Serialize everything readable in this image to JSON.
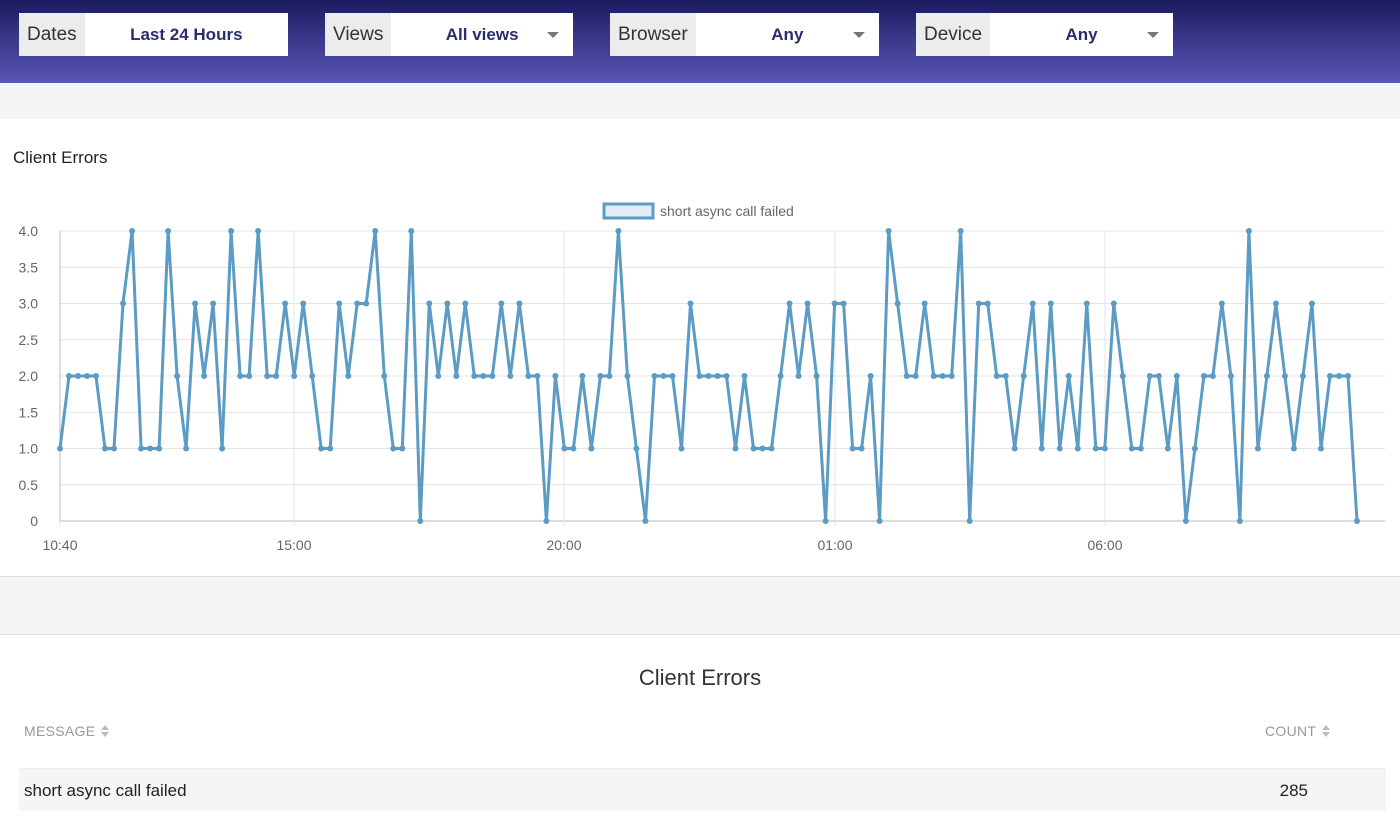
{
  "filters": [
    {
      "label": "Dates",
      "value": "Last 24 Hours",
      "dropdown": false
    },
    {
      "label": "Views",
      "value": "All views",
      "dropdown": true
    },
    {
      "label": "Browser",
      "value": "Any",
      "dropdown": true
    },
    {
      "label": "Device",
      "value": "Any",
      "dropdown": true
    }
  ],
  "chart": {
    "title": "Client Errors"
  },
  "chart_data": {
    "type": "line",
    "title": "Client Errors",
    "xlabel": "",
    "ylabel": "",
    "ylim": [
      0,
      4
    ],
    "yticks": [
      "0",
      "0.5",
      "1.0",
      "1.5",
      "2.0",
      "2.5",
      "3.0",
      "3.5",
      "4.0"
    ],
    "xticks": [
      "10:40",
      "15:00",
      "20:00",
      "01:00",
      "06:00"
    ],
    "grid": true,
    "legend": "top-center",
    "series": [
      {
        "name": "short async call failed",
        "color": "#5b9bc4",
        "values": [
          1,
          2,
          2,
          2,
          2,
          1,
          1,
          3,
          4,
          1,
          1,
          1,
          4,
          2,
          1,
          3,
          2,
          3,
          1,
          4,
          2,
          2,
          4,
          2,
          2,
          3,
          2,
          3,
          2,
          1,
          1,
          3,
          2,
          3,
          3,
          4,
          2,
          1,
          1,
          4,
          0,
          3,
          2,
          3,
          2,
          3,
          2,
          2,
          2,
          3,
          2,
          3,
          2,
          2,
          0,
          2,
          1,
          1,
          2,
          1,
          2,
          2,
          4,
          2,
          1,
          0,
          2,
          2,
          2,
          1,
          3,
          2,
          2,
          2,
          2,
          1,
          2,
          1,
          1,
          1,
          2,
          3,
          2,
          3,
          2,
          0,
          3,
          3,
          1,
          1,
          2,
          0,
          4,
          3,
          2,
          2,
          3,
          2,
          2,
          2,
          4,
          0,
          3,
          3,
          2,
          2,
          1,
          2,
          3,
          1,
          3,
          1,
          2,
          1,
          3,
          1,
          1,
          3,
          2,
          1,
          1,
          2,
          2,
          1,
          2,
          0,
          1,
          2,
          2,
          3,
          2,
          0,
          4,
          1,
          2,
          3,
          2,
          1,
          2,
          3,
          1,
          2,
          2,
          2,
          0
        ]
      }
    ]
  },
  "table": {
    "title": "Client Errors",
    "columns": {
      "message": "MESSAGE",
      "count": "COUNT"
    },
    "rows": [
      {
        "message": "short async call failed",
        "count": "285"
      }
    ]
  }
}
